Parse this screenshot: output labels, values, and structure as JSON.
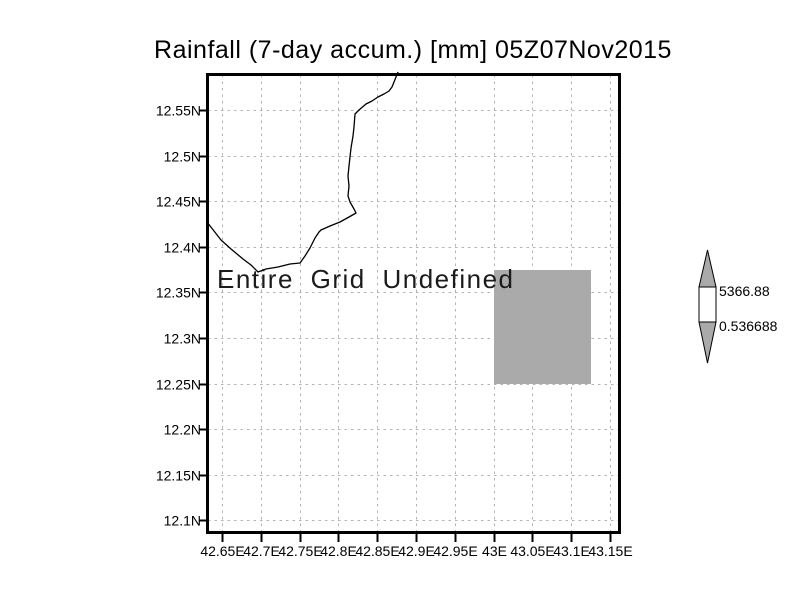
{
  "title": "Rainfall (7-day accum.) [mm] 05Z07Nov2015",
  "message": "Entire Grid Undefined",
  "colorbar": {
    "max_label": "5366.88",
    "min_label": "0.536688"
  },
  "colors": {
    "background": "#ffffff",
    "frame": "#000000",
    "grid": "#b3b3b3",
    "shade": "#aaaaaa",
    "coastline": "#000000"
  },
  "chart_data": {
    "type": "heatmap",
    "title": "Rainfall (7-day accum.) [mm] 05Z07Nov2015",
    "status": "Entire Grid Undefined",
    "xlabel": "",
    "ylabel": "",
    "x_tick_labels": [
      "42.65E",
      "42.7E",
      "42.75E",
      "42.8E",
      "42.85E",
      "42.9E",
      "42.95E",
      "43E",
      "43.05E",
      "43.1E",
      "43.15E"
    ],
    "y_tick_labels": [
      "12.55N",
      "12.5N",
      "12.45N",
      "12.4N",
      "12.35N",
      "12.3N",
      "12.25N",
      "12.2N",
      "12.15N",
      "12.1N"
    ],
    "lon_ticks": [
      42.65,
      42.7,
      42.75,
      42.8,
      42.85,
      42.9,
      42.95,
      43.0,
      43.05,
      43.1,
      43.15
    ],
    "lat_ticks": [
      12.55,
      12.5,
      12.45,
      12.4,
      12.35,
      12.3,
      12.25,
      12.2,
      12.15,
      12.1
    ],
    "grid": "dotted",
    "legend_position": "right-colorbar",
    "colorbar_levels": [
      0.536688,
      5366.88
    ],
    "shaded_cells": [
      {
        "lon_min": 43.0,
        "lon_max": 43.125,
        "lat_min": 12.25,
        "lat_max": 12.375,
        "color": "#aaaaaa"
      }
    ],
    "overlays": [
      "coastline"
    ]
  }
}
